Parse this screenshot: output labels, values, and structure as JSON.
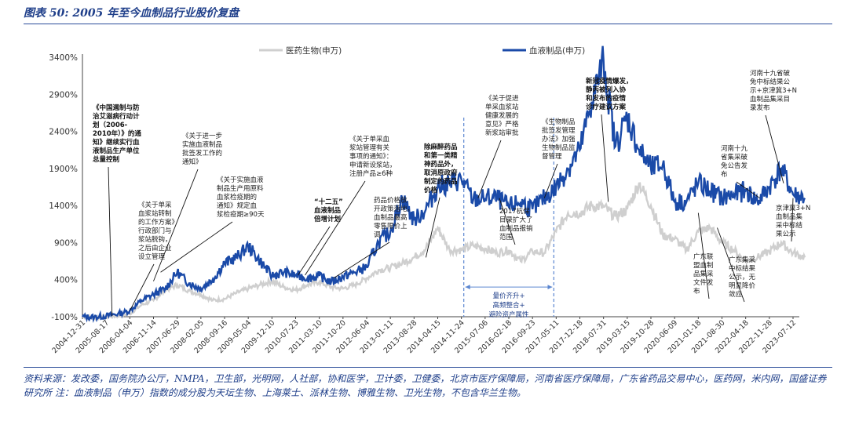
{
  "figure_title": "图表 50:  2005 年至今血制品行业股价复盘",
  "source_note": "资料来源：发改委，国务院办公厅，NMPA，卫生部，光明网，人社部，协和医学，卫计委，卫健委，北京市医疗保障局，河南省医疗保障局，广东省药品交易中心，医药网，米内网，国盛证券研究所  注：血液制品（申万）指数的成分股为天坛生物、上海莱士、派林生物、博雅生物、卫光生物，不包含华兰生物。",
  "colors": {
    "pharma": "#cfcfcf",
    "blood": "#1a4aa8",
    "accent": "#1f3f8a",
    "dashed": "#5b86d0"
  },
  "chart_data": {
    "type": "line",
    "ylim": [
      -100,
      3400
    ],
    "y_ticks": [
      "3400%",
      "2900%",
      "2400%",
      "1900%",
      "1400%",
      "900%",
      "400%",
      "-100%"
    ],
    "x_tick_labels": [
      "2004-12-31",
      "2005-08-17",
      "2006-04-04",
      "2006-11-14",
      "2007-06-29",
      "2008-02-05",
      "2008-09-16",
      "2009-05-04",
      "2009-12-10",
      "2010-07-23",
      "2011-03-10",
      "2011-10-20",
      "2012-06-04",
      "2013-01-11",
      "2013-08-28",
      "2014-04-15",
      "2014-11-24",
      "2015-07-06",
      "2016-02-18",
      "2016-09-23",
      "2017-05-11",
      "2017-12-18",
      "2018-07-31",
      "2019-03-15",
      "2019-10-28",
      "2020-06-09",
      "2021-01-18",
      "2021-08-30",
      "2022-04-18",
      "2022-11-28",
      "2023-07-12"
    ],
    "series": [
      {
        "name": "医药生物(申万)",
        "x": [
          0,
          0.5,
          1,
          1.5,
          2,
          2.5,
          3,
          3.5,
          4,
          4.5,
          5,
          5.5,
          6,
          6.5,
          7,
          7.5,
          8,
          8.5,
          9,
          9.5,
          10,
          10.5,
          11,
          11.5,
          12,
          12.5,
          13,
          13.5,
          14,
          14.5,
          15,
          15.5,
          16,
          16.5,
          17,
          17.5,
          18,
          18.5,
          19,
          19.5,
          20,
          20.5,
          21,
          21.5,
          22,
          22.5,
          23,
          23.5,
          24,
          24.5,
          25,
          25.5,
          26,
          26.5,
          27,
          27.5,
          28,
          28.5,
          29,
          29.5,
          30,
          30.5
        ],
        "values": [
          -100,
          -110,
          -100,
          -90,
          -60,
          60,
          120,
          260,
          330,
          250,
          200,
          120,
          140,
          220,
          280,
          330,
          380,
          300,
          260,
          330,
          370,
          300,
          280,
          330,
          420,
          530,
          560,
          620,
          700,
          820,
          1100,
          800,
          800,
          860,
          820,
          760,
          800,
          650,
          780,
          760,
          1050,
          1300,
          1300,
          1400,
          1380,
          1250,
          1350,
          1700,
          1400,
          1000,
          950,
          800,
          1050,
          1100,
          900,
          800,
          650,
          700,
          780,
          900,
          760,
          700
        ]
      },
      {
        "name": "血液制品(申万)",
        "x": [
          0,
          0.5,
          1,
          1.5,
          2,
          2.5,
          3,
          3.5,
          4,
          4.5,
          5,
          5.5,
          6,
          6.5,
          7,
          7.5,
          8,
          8.5,
          9,
          9.5,
          10,
          10.5,
          11,
          11.5,
          12,
          12.5,
          13,
          13.5,
          14,
          14.5,
          15,
          15.5,
          16,
          16.5,
          17,
          17.5,
          18,
          18.5,
          19,
          19.5,
          20,
          20.5,
          21,
          21.5,
          22,
          22.5,
          23,
          23.5,
          24,
          24.5,
          25,
          25.5,
          26,
          26.5,
          27,
          27.5,
          28,
          28.5,
          29,
          29.5,
          30,
          30.5
        ],
        "values": [
          -100,
          -105,
          -90,
          -60,
          -20,
          120,
          200,
          280,
          500,
          350,
          280,
          400,
          620,
          700,
          850,
          650,
          450,
          500,
          460,
          420,
          450,
          370,
          440,
          500,
          570,
          900,
          1050,
          1500,
          1200,
          1350,
          1650,
          1700,
          1750,
          1480,
          1500,
          1500,
          1380,
          1450,
          1350,
          1500,
          1650,
          1900,
          2150,
          2800,
          3350,
          2200,
          2600,
          2150,
          1900,
          1950,
          1450,
          1450,
          1700,
          1600,
          1500,
          1550,
          1600,
          1450,
          1650,
          1900,
          1550,
          1500
        ]
      }
    ],
    "shaded_note": "量价齐升+\n高频整合+\n避险资产属性",
    "annotations": [
      {
        "text": "《中国遏制与防\n治艾滋病行动计\n划（2006-\n2010年）》的通\n知》继续实行血\n液制品生产单位\n总量控制",
        "bold": true
      },
      {
        "text": "《关于单采\n血浆站转制\n的工作方案》\n行政部门与\n浆站脱钩，\n之后由企业\n设立管理"
      },
      {
        "text": "《关于进一步\n实施血液制品\n批签发工作的\n通知》"
      },
      {
        "text": "《关于实施血液\n制品生产用原料\n血浆检疫期的\n通知》规定血\n浆检疫期≥90天"
      },
      {
        "text": "《关于单采血\n浆站管理有关\n事项的通知》：\n申请新设浆站，\n注册产品≥6种"
      },
      {
        "text": "“十二五”\n血液制品\n倍增计划",
        "bold": true
      },
      {
        "text": "药品价格放\n开政策落地，\n血制品最高\n零售限价上\n调"
      },
      {
        "text": "除麻醉药品\n和第一类精\n神药品外，\n取消原政府\n制定的药品\n价格",
        "bold": true
      },
      {
        "text": "《关于促进\n单采血浆站\n健康发展的\n意见》严格\n新浆站审批"
      },
      {
        "text": "2017杭保\n目录扩大了\n血制品报销\n范围"
      },
      {
        "text": "《生物制品\n批签发管理\n办法》加强\n生物制品监\n督管理"
      },
      {
        "text": "新冠疫情爆发，\n静丙被列入协\n和发布的疫情\n诊疗建议方案",
        "bold": true
      },
      {
        "text": "河南十九省破\n免中标结果公\n示+京津冀3+N\n血制品集采目\n录发布"
      },
      {
        "text": "河南十九\n省集采破\n免公告发\n布"
      },
      {
        "text": "京津冀3+N\n血制品集\n采中标结\n果公示"
      },
      {
        "text": "广东联\n盟血制\n品集采\n文件发\n布"
      },
      {
        "text": "广东集采\n中标结果\n公示，无\n明显降价\n敛应"
      }
    ]
  }
}
